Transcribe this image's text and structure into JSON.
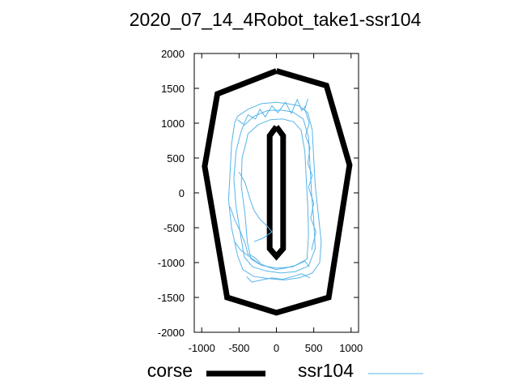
{
  "chart_data": {
    "type": "line",
    "title": "2020_07_14_4Robot_take1-ssr104",
    "xlim": [
      -1100,
      1100
    ],
    "ylim": [
      -2000,
      2000
    ],
    "xticks": [
      -1000,
      -500,
      0,
      500,
      1000
    ],
    "yticks": [
      2000,
      1500,
      1000,
      500,
      0,
      -500,
      -1000,
      -1500,
      -2000
    ],
    "grid": false,
    "legend_position": "bottom",
    "series": [
      {
        "name": "corse",
        "color": "#000000",
        "paths": [
          [
            [
              0,
              1750
            ],
            [
              670,
              1540
            ],
            [
              980,
              400
            ],
            [
              700,
              -1500
            ],
            [
              0,
              -1720
            ],
            [
              -660,
              -1500
            ],
            [
              -960,
              380
            ],
            [
              -790,
              1420
            ],
            [
              0,
              1750
            ]
          ],
          [
            [
              0,
              950
            ],
            [
              90,
              820
            ],
            [
              90,
              -800
            ],
            [
              0,
              -910
            ],
            [
              -90,
              -800
            ],
            [
              -90,
              820
            ],
            [
              0,
              950
            ]
          ]
        ]
      },
      {
        "name": "ssr104",
        "color": "#56b4e9",
        "paths": [
          [
            [
              -520,
              1100
            ],
            [
              -380,
              1200
            ],
            [
              -200,
              1280
            ],
            [
              0,
              1300
            ],
            [
              150,
              1280
            ],
            [
              300,
              1250
            ],
            [
              420,
              1150
            ],
            [
              480,
              900
            ],
            [
              500,
              500
            ],
            [
              520,
              100
            ],
            [
              560,
              -300
            ],
            [
              600,
              -700
            ],
            [
              580,
              -1000
            ],
            [
              480,
              -1150
            ],
            [
              300,
              -1220
            ],
            [
              100,
              -1250
            ],
            [
              -100,
              -1230
            ],
            [
              -300,
              -1200
            ],
            [
              -450,
              -1100
            ],
            [
              -520,
              -900
            ],
            [
              -600,
              -500
            ],
            [
              -640,
              -100
            ],
            [
              -620,
              300
            ],
            [
              -600,
              700
            ],
            [
              -560,
              1000
            ],
            [
              -520,
              1100
            ]
          ],
          [
            [
              -450,
              950
            ],
            [
              -300,
              1100
            ],
            [
              -120,
              1180
            ],
            [
              60,
              1190
            ],
            [
              220,
              1160
            ],
            [
              360,
              1060
            ],
            [
              430,
              800
            ],
            [
              450,
              400
            ],
            [
              470,
              0
            ],
            [
              500,
              -400
            ],
            [
              520,
              -800
            ],
            [
              430,
              -1050
            ],
            [
              250,
              -1130
            ],
            [
              60,
              -1150
            ],
            [
              -140,
              -1120
            ],
            [
              -320,
              -1060
            ],
            [
              -430,
              -920
            ],
            [
              -480,
              -600
            ],
            [
              -540,
              -200
            ],
            [
              -570,
              200
            ],
            [
              -540,
              600
            ],
            [
              -480,
              850
            ],
            [
              -450,
              950
            ]
          ],
          [
            [
              -380,
              850
            ],
            [
              -240,
              980
            ],
            [
              -80,
              1050
            ],
            [
              80,
              1060
            ],
            [
              230,
              1020
            ],
            [
              330,
              900
            ],
            [
              380,
              600
            ],
            [
              400,
              200
            ],
            [
              420,
              -200
            ],
            [
              430,
              -600
            ],
            [
              410,
              -950
            ],
            [
              220,
              -1060
            ],
            [
              0,
              -1080
            ],
            [
              -200,
              -1040
            ],
            [
              -340,
              -950
            ],
            [
              -390,
              -700
            ],
            [
              -420,
              -300
            ],
            [
              -470,
              100
            ],
            [
              -460,
              500
            ],
            [
              -400,
              750
            ],
            [
              -380,
              850
            ]
          ],
          [
            [
              -500,
              300
            ],
            [
              -420,
              150
            ],
            [
              -350,
              -100
            ],
            [
              -300,
              -250
            ],
            [
              -220,
              -380
            ],
            [
              -120,
              -480
            ],
            [
              -60,
              -560
            ],
            [
              -180,
              -650
            ],
            [
              -300,
              -700
            ]
          ],
          [
            [
              -560,
              -700
            ],
            [
              -480,
              -820
            ],
            [
              -380,
              -900
            ],
            [
              -250,
              -1000
            ],
            [
              -120,
              -1060
            ],
            [
              0,
              -1100
            ],
            [
              120,
              -1080
            ],
            [
              260,
              -1040
            ],
            [
              380,
              -980
            ],
            [
              440,
              -1060
            ]
          ],
          [
            [
              -400,
              -1200
            ],
            [
              -330,
              -1280
            ],
            [
              -200,
              -1250
            ],
            [
              -60,
              -1220
            ],
            [
              80,
              -1240
            ],
            [
              220,
              -1200
            ],
            [
              340,
              -1160
            ],
            [
              450,
              -1220
            ]
          ],
          [
            [
              420,
              1350
            ],
            [
              380,
              1200
            ],
            [
              440,
              1000
            ],
            [
              390,
              820
            ],
            [
              450,
              650
            ],
            [
              420,
              420
            ],
            [
              480,
              250
            ],
            [
              430,
              80
            ],
            [
              500,
              -150
            ],
            [
              460,
              -360
            ],
            [
              530,
              -560
            ],
            [
              470,
              -820
            ]
          ],
          [
            [
              -520,
              1050
            ],
            [
              -440,
              980
            ],
            [
              -380,
              1120
            ],
            [
              -280,
              1060
            ],
            [
              -220,
              1200
            ],
            [
              -150,
              1090
            ],
            [
              -60,
              1250
            ],
            [
              20,
              1150
            ],
            [
              120,
              1300
            ],
            [
              200,
              1140
            ],
            [
              280,
              1340
            ],
            [
              340,
              1180
            ],
            [
              400,
              1260
            ]
          ],
          [
            [
              -620,
              -200
            ],
            [
              -560,
              -380
            ],
            [
              -480,
              -560
            ],
            [
              -420,
              -720
            ],
            [
              -380,
              -880
            ],
            [
              -300,
              -920
            ],
            [
              -220,
              -1000
            ]
          ]
        ]
      }
    ]
  }
}
